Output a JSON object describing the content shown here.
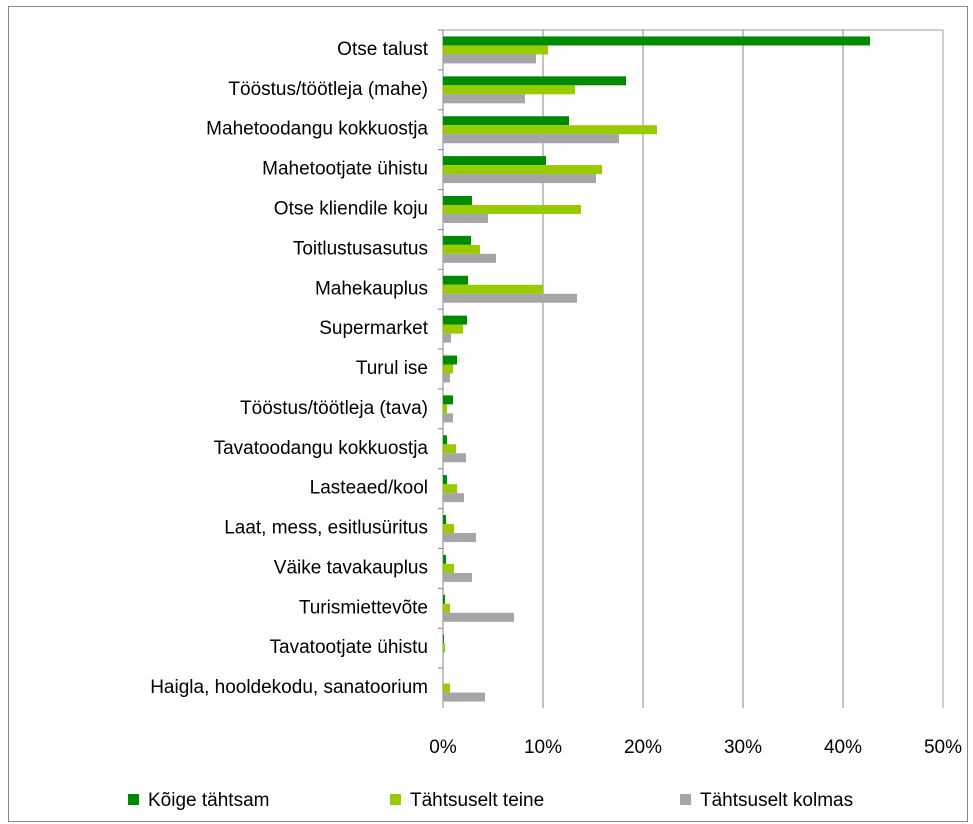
{
  "chart_data": {
    "type": "hbar",
    "categories": [
      "Otse talust",
      "Tööstus/töötleja (mahe)",
      "Mahetoodangu kokkuostja",
      "Mahetootjate ühistu",
      "Otse kliendile koju",
      "Toitlustusasutus",
      "Mahekauplus",
      "Supermarket",
      "Turul ise",
      "Tööstus/töötleja (tava)",
      "Tavatoodangu kokkuostja",
      "Lasteaed/kool",
      "Laat, mess, esitlusüritus",
      "Väike tavakauplus",
      "Turismiettevõte",
      "Tavatootjate ühistu",
      "Haigla, hooldekodu, sanatoorium"
    ],
    "series": [
      {
        "name": "Kõige tähtsam",
        "color": "#008a00",
        "values": [
          42.7,
          18.3,
          12.6,
          10.3,
          2.9,
          2.8,
          2.5,
          2.4,
          1.4,
          1.0,
          0.4,
          0.4,
          0.3,
          0.3,
          0.2,
          0.1,
          0
        ]
      },
      {
        "name": "Tähtsuselt teine",
        "color": "#99cc00",
        "values": [
          10.5,
          13.2,
          21.4,
          15.9,
          13.8,
          3.7,
          10.0,
          2.0,
          1.0,
          0.4,
          1.3,
          1.4,
          1.1,
          1.1,
          0.7,
          0.2,
          0.7
        ]
      },
      {
        "name": "Tähtsuselt kolmas",
        "color": "#a6a6a6",
        "values": [
          9.3,
          8.2,
          17.6,
          15.3,
          4.5,
          5.3,
          13.4,
          0.8,
          0.7,
          1.0,
          2.3,
          2.1,
          3.3,
          2.9,
          7.1,
          0,
          4.2
        ]
      }
    ],
    "xlim": [
      0,
      50
    ],
    "xticks": [
      {
        "value": 0,
        "label": "0%"
      },
      {
        "value": 10,
        "label": "10%"
      },
      {
        "value": 20,
        "label": "20%"
      },
      {
        "value": 30,
        "label": "30%"
      },
      {
        "value": 40,
        "label": "40%"
      },
      {
        "value": 50,
        "label": "50%"
      }
    ],
    "grid": true
  }
}
